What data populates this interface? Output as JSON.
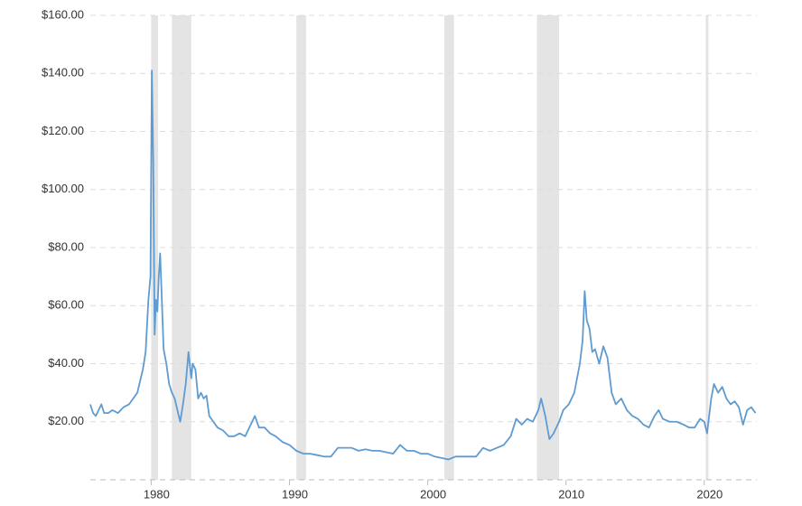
{
  "chart_data": {
    "type": "line",
    "x": [
      1975.6,
      1975.8,
      1976.0,
      1976.2,
      1976.4,
      1976.6,
      1976.9,
      1977.2,
      1977.6,
      1978.0,
      1978.4,
      1978.7,
      1979.0,
      1979.2,
      1979.4,
      1979.6,
      1979.8,
      1979.95,
      1980.05,
      1980.15,
      1980.25,
      1980.35,
      1980.45,
      1980.55,
      1980.65,
      1980.75,
      1980.9,
      1981.1,
      1981.3,
      1981.5,
      1981.7,
      1981.9,
      1982.1,
      1982.3,
      1982.5,
      1982.7,
      1982.9,
      1983.0,
      1983.2,
      1983.4,
      1983.6,
      1983.8,
      1984.0,
      1984.2,
      1984.5,
      1984.8,
      1985.2,
      1985.6,
      1986.0,
      1986.4,
      1986.8,
      1987.3,
      1987.5,
      1987.8,
      1988.2,
      1988.6,
      1989.0,
      1989.5,
      1990.0,
      1990.5,
      1991.0,
      1991.5,
      1992.0,
      1992.5,
      1993.0,
      1993.5,
      1994.0,
      1994.5,
      1995.0,
      1995.5,
      1996.0,
      1996.5,
      1997.0,
      1997.5,
      1998.0,
      1998.5,
      1999.0,
      1999.5,
      2000.0,
      2000.5,
      2001.0,
      2001.5,
      2002.0,
      2002.5,
      2003.0,
      2003.5,
      2004.0,
      2004.5,
      2005.0,
      2005.5,
      2006.0,
      2006.4,
      2006.8,
      2007.2,
      2007.6,
      2008.0,
      2008.2,
      2008.5,
      2008.8,
      2009.1,
      2009.5,
      2009.8,
      2010.2,
      2010.6,
      2011.0,
      2011.2,
      2011.35,
      2011.5,
      2011.7,
      2011.9,
      2012.1,
      2012.4,
      2012.7,
      2013.0,
      2013.3,
      2013.6,
      2014.0,
      2014.4,
      2014.8,
      2015.2,
      2015.6,
      2016.0,
      2016.4,
      2016.7,
      2017.0,
      2017.5,
      2018.0,
      2018.5,
      2018.9,
      2019.3,
      2019.7,
      2020.0,
      2020.2,
      2020.5,
      2020.7,
      2021.0,
      2021.3,
      2021.6,
      2021.9,
      2022.2,
      2022.5,
      2022.8,
      2023.1,
      2023.4,
      2023.7
    ],
    "series": [
      {
        "color": "#5f9bd0",
        "values": [
          26,
          23,
          22,
          24,
          26,
          23,
          23,
          24,
          23,
          25,
          26,
          28,
          30,
          34,
          38,
          44,
          62,
          70,
          141,
          110,
          50,
          62,
          58,
          70,
          78,
          65,
          45,
          40,
          33,
          30,
          28,
          24,
          20,
          26,
          33,
          44,
          35,
          40,
          38,
          28,
          30,
          28,
          29,
          22,
          20,
          18,
          17,
          15,
          15,
          16,
          15,
          20,
          22,
          18,
          18,
          16,
          15,
          13,
          12,
          10,
          9,
          9,
          8.5,
          8,
          8,
          11,
          11,
          11,
          10,
          10.5,
          10,
          10,
          9.5,
          9,
          12,
          10,
          10,
          9,
          9,
          8,
          7.5,
          7,
          8,
          8,
          8,
          8,
          11,
          10,
          11,
          12,
          15,
          21,
          19,
          21,
          20,
          24,
          28,
          22,
          14,
          16,
          20,
          24,
          26,
          30,
          40,
          48,
          65,
          55,
          52,
          44,
          45,
          40,
          46,
          42,
          30,
          26,
          28,
          24,
          22,
          21,
          19,
          18,
          22,
          24,
          21,
          20,
          20,
          19,
          18,
          18,
          21,
          20,
          16,
          28,
          33,
          30,
          32,
          28,
          26,
          27,
          25,
          19,
          24,
          25,
          23
        ]
      }
    ],
    "recessions": [
      [
        1980.0,
        1980.5
      ],
      [
        1981.5,
        1982.9
      ],
      [
        1990.5,
        1991.2
      ],
      [
        2001.2,
        2001.9
      ],
      [
        2007.9,
        2009.5
      ],
      [
        2020.1,
        2020.3
      ]
    ],
    "xlim": [
      1975.6,
      2023.8
    ],
    "xticks": [
      1980,
      1990,
      2000,
      2010,
      2020
    ],
    "ylim": [
      0,
      160
    ],
    "yticks": [
      {
        "value": 20,
        "label": "$20.00"
      },
      {
        "value": 40,
        "label": "$40.00"
      },
      {
        "value": 60,
        "label": "$60.00"
      },
      {
        "value": 80,
        "label": "$80.00"
      },
      {
        "value": 100,
        "label": "$100.00"
      },
      {
        "value": 120,
        "label": "$120.00"
      },
      {
        "value": 140,
        "label": "$140.00"
      },
      {
        "value": 160,
        "label": "$160.00"
      }
    ],
    "grid": true
  }
}
